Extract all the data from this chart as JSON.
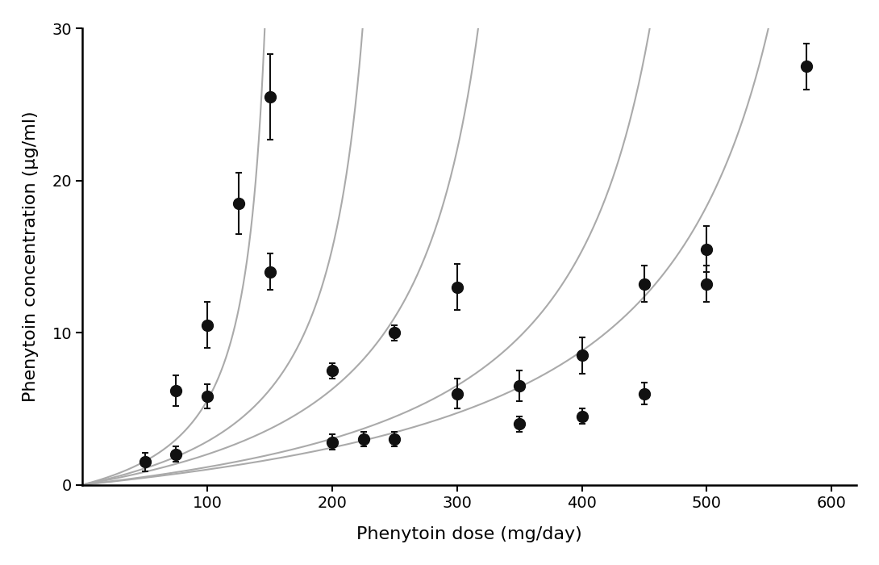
{
  "xlabel": "Phenytoin dose (mg/day)",
  "ylabel": "Phenytoin concentration (μg/ml)",
  "xlim": [
    0,
    620
  ],
  "ylim": [
    0,
    30
  ],
  "xticks": [
    100,
    200,
    300,
    400,
    500,
    600
  ],
  "yticks": [
    0,
    10,
    20,
    30
  ],
  "curve_color": "#aaaaaa",
  "point_color": "#111111",
  "background_color": "#ffffff",
  "curves": [
    {
      "Vmax": 163,
      "Km": 3.5
    },
    {
      "Vmax": 258,
      "Km": 4.5
    },
    {
      "Vmax": 375,
      "Km": 5.5
    },
    {
      "Vmax": 530,
      "Km": 5.0
    },
    {
      "Vmax": 650,
      "Km": 5.5
    }
  ],
  "data_series": [
    {
      "x": [
        50,
        75,
        100,
        125,
        150
      ],
      "y": [
        1.5,
        6.2,
        10.5,
        18.5,
        25.5
      ],
      "yerr": [
        0.6,
        1.0,
        1.5,
        2.0,
        2.8
      ]
    },
    {
      "x": [
        75,
        100,
        150,
        200,
        250
      ],
      "y": [
        2.0,
        5.8,
        14.0,
        7.5,
        10.0
      ],
      "yerr": [
        0.5,
        0.8,
        1.2,
        0.5,
        0.5
      ]
    },
    {
      "x": [
        200,
        225,
        250,
        300
      ],
      "y": [
        2.8,
        3.0,
        3.0,
        13.0
      ],
      "yerr": [
        0.5,
        0.5,
        0.5,
        1.5
      ]
    },
    {
      "x": [
        300,
        350,
        400,
        450,
        500
      ],
      "y": [
        6.0,
        6.5,
        8.5,
        13.2,
        13.2
      ],
      "yerr": [
        1.0,
        1.0,
        1.2,
        1.2,
        1.2
      ]
    },
    {
      "x": [
        350,
        400,
        450,
        500,
        580
      ],
      "y": [
        4.0,
        4.5,
        6.0,
        15.5,
        27.5
      ],
      "yerr": [
        0.5,
        0.5,
        0.7,
        1.5,
        1.5
      ]
    }
  ]
}
